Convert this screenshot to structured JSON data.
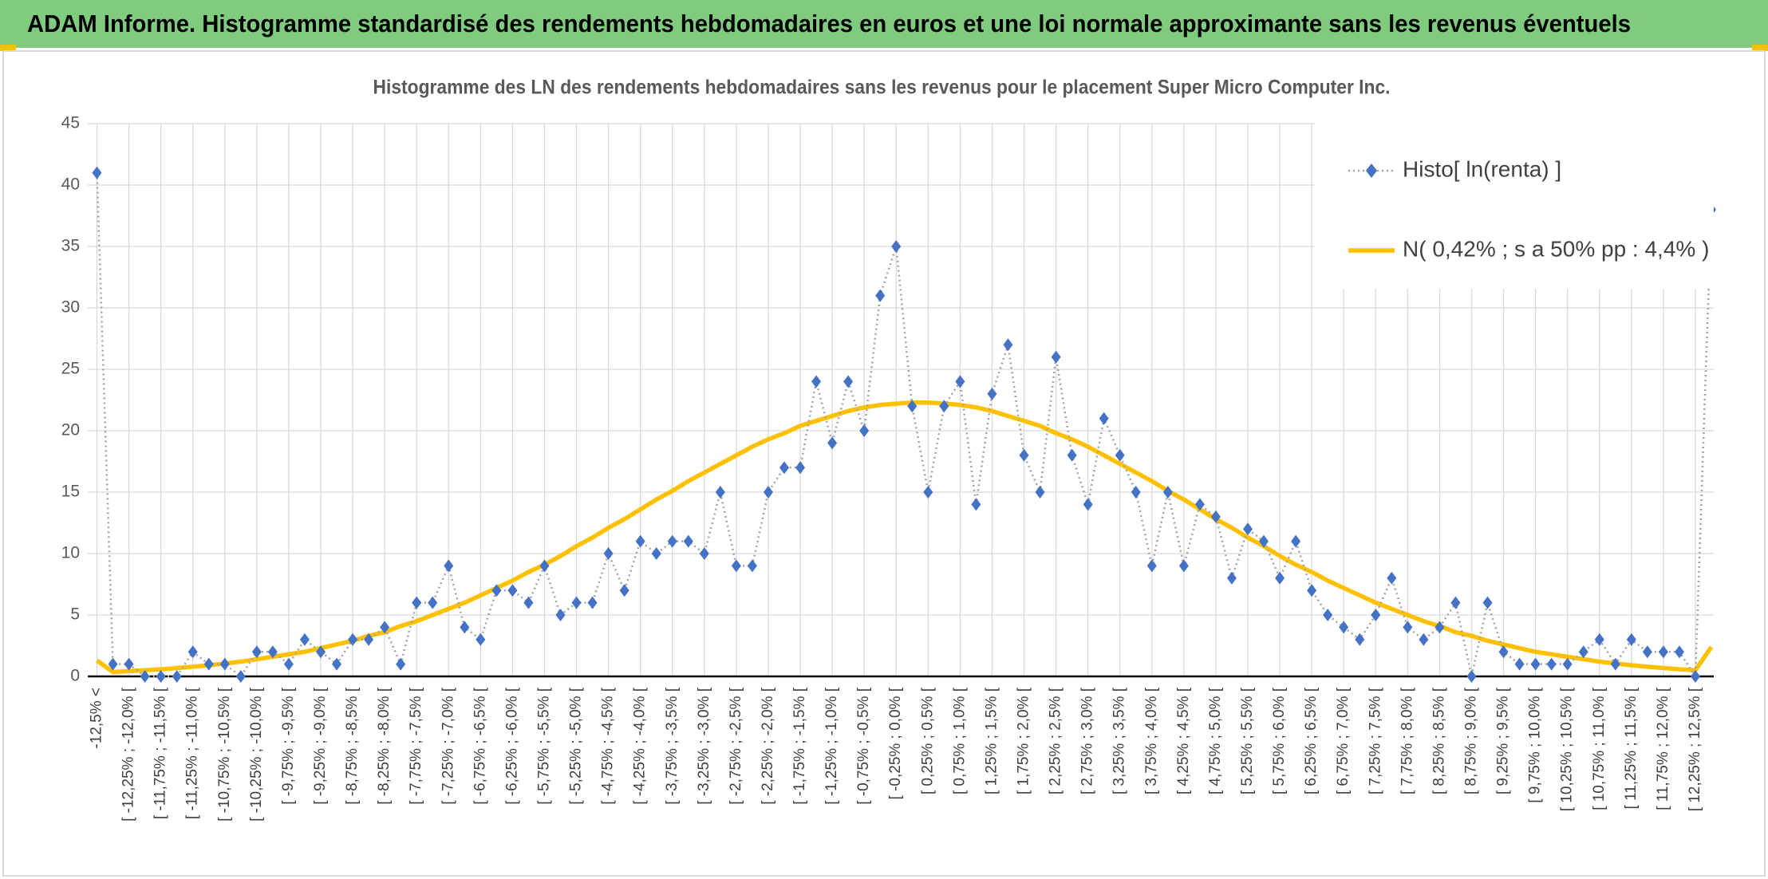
{
  "header": {
    "title": "ADAM Informe. Histogramme standardisé des rendements hebdomadaires en euros et une loi normale approximante sans les revenus éventuels"
  },
  "chart_data": {
    "type": "line",
    "title": "Histogramme des LN des rendements hebdomadaires sans les revenus pour le placement Super Micro Computer Inc.",
    "categories": [
      "-12,5% <",
      null,
      "[ -12,25% ; -12,0% [",
      null,
      "[ -11,75% ; -11,5% [",
      null,
      "[ -11,25% ; -11,0% [",
      null,
      "[ -10,75% ; -10,5% [",
      null,
      "[ -10,25% ; -10,0% [",
      null,
      "[ -9,75% ; -9,5% [",
      null,
      "[ -9,25% ; -9,0% [",
      null,
      "[ -8,75% ; -8,5% [",
      null,
      "[ -8,25% ; -8,0% [",
      null,
      "[ -7,75% ; -7,5% [",
      null,
      "[ -7,25% ; -7,0% [",
      null,
      "[ -6,75% ; -6,5% [",
      null,
      "[ -6,25% ; -6,0% [",
      null,
      "[ -5,75% ; -5,5% [",
      null,
      "[ -5,25% ; -5,0% [",
      null,
      "[ -4,75% ; -4,5% [",
      null,
      "[ -4,25% ; -4,0% [",
      null,
      "[ -3,75% ; -3,5% [",
      null,
      "[ -3,25% ; -3,0% [",
      null,
      "[ -2,75% ; -2,5% [",
      null,
      "[ -2,25% ; -2,0% [",
      null,
      "[ -1,75% ; -1,5% [",
      null,
      "[ -1,25% ; -1,0% [",
      null,
      "[ -0,75% ; -0,5% [",
      null,
      "[ -0,25% ; 0,0% [",
      null,
      "[ 0,25% ; 0,5% [",
      null,
      "[ 0,75% ; 1,0% [",
      null,
      "[ 1,25% ; 1,5% [",
      null,
      "[ 1,75% ; 2,0% [",
      null,
      "[ 2,25% ; 2,5% [",
      null,
      "[ 2,75% ; 3,0% [",
      null,
      "[ 3,25% ; 3,5% [",
      null,
      "[ 3,75% ; 4,0% [",
      null,
      "[ 4,25% ; 4,5% [",
      null,
      "[ 4,75% ; 5,0% [",
      null,
      "[ 5,25% ; 5,5% [",
      null,
      "[ 5,75% ; 6,0% [",
      null,
      "[ 6,25% ; 6,5% [",
      null,
      "[ 6,75% ; 7,0% [",
      null,
      "[ 7,25% ; 7,5% [",
      null,
      "[ 7,75% ; 8,0% [",
      null,
      "[ 8,25% ; 8,5% [",
      null,
      "[ 8,75% ; 9,0% [",
      null,
      "[ 9,25% ; 9,5% [",
      null,
      "[ 9,75% ; 10,0% [",
      null,
      "[ 10,25% ; 10,5% [",
      null,
      "[ 10,75% ; 11,0% [",
      null,
      "[ 11,25% ; 11,5% [",
      null,
      "[ 11,75% ; 12,0% [",
      null,
      "[ 12,25% ; 12,5% [",
      null
    ],
    "series": [
      {
        "name": "Histo[ ln(renta) ]",
        "color": "#4472c4",
        "line_color": "#a5a5a5",
        "values": [
          41,
          1,
          1,
          0,
          0,
          0,
          2,
          1,
          1,
          0,
          2,
          2,
          1,
          3,
          2,
          1,
          3,
          3,
          4,
          1,
          6,
          6,
          9,
          4,
          3,
          7,
          7,
          6,
          9,
          5,
          6,
          6,
          10,
          7,
          11,
          10,
          11,
          11,
          10,
          15,
          9,
          9,
          15,
          17,
          17,
          24,
          19,
          24,
          20,
          31,
          35,
          22,
          15,
          22,
          24,
          14,
          23,
          27,
          18,
          15,
          26,
          18,
          14,
          21,
          18,
          15,
          9,
          15,
          9,
          14,
          13,
          8,
          12,
          11,
          8,
          11,
          7,
          5,
          4,
          3,
          5,
          8,
          4,
          3,
          4,
          6,
          0,
          6,
          2,
          1,
          1,
          1,
          1,
          2,
          3,
          1,
          3,
          2,
          2,
          2,
          0,
          38
        ]
      },
      {
        "name": "N( 0,42% ; s a 50% pp : 4,4% )",
        "color": "#ffc000",
        "values": [
          1.3,
          0.36,
          0.43,
          0.5,
          0.58,
          0.68,
          0.79,
          0.91,
          1.05,
          1.2,
          1.4,
          1.6,
          1.8,
          2.0,
          2.3,
          2.6,
          2.9,
          3.3,
          3.6,
          4.1,
          4.5,
          5.0,
          5.5,
          6.0,
          6.6,
          7.2,
          7.8,
          8.5,
          9.1,
          9.8,
          10.6,
          11.3,
          12.1,
          12.8,
          13.6,
          14.4,
          15.1,
          15.9,
          16.6,
          17.3,
          18.0,
          18.7,
          19.3,
          19.8,
          20.4,
          20.8,
          21.2,
          21.6,
          21.9,
          22.1,
          22.2,
          22.3,
          22.3,
          22.2,
          22.1,
          21.9,
          21.6,
          21.2,
          20.8,
          20.4,
          19.8,
          19.3,
          18.7,
          18.0,
          17.3,
          16.6,
          15.9,
          15.1,
          14.4,
          13.6,
          12.8,
          12.1,
          11.3,
          10.6,
          9.8,
          9.1,
          8.5,
          7.8,
          7.2,
          6.6,
          6.0,
          5.5,
          5.0,
          4.5,
          4.1,
          3.6,
          3.3,
          2.9,
          2.6,
          2.3,
          2.0,
          1.8,
          1.6,
          1.4,
          1.2,
          1.05,
          0.91,
          0.79,
          0.68,
          0.58,
          0.5,
          2.4
        ]
      }
    ],
    "ylim": [
      0,
      45
    ],
    "yticks": [
      0,
      5,
      10,
      15,
      20,
      25,
      30,
      35,
      40,
      45
    ],
    "grid": true,
    "legend": "upper right"
  }
}
